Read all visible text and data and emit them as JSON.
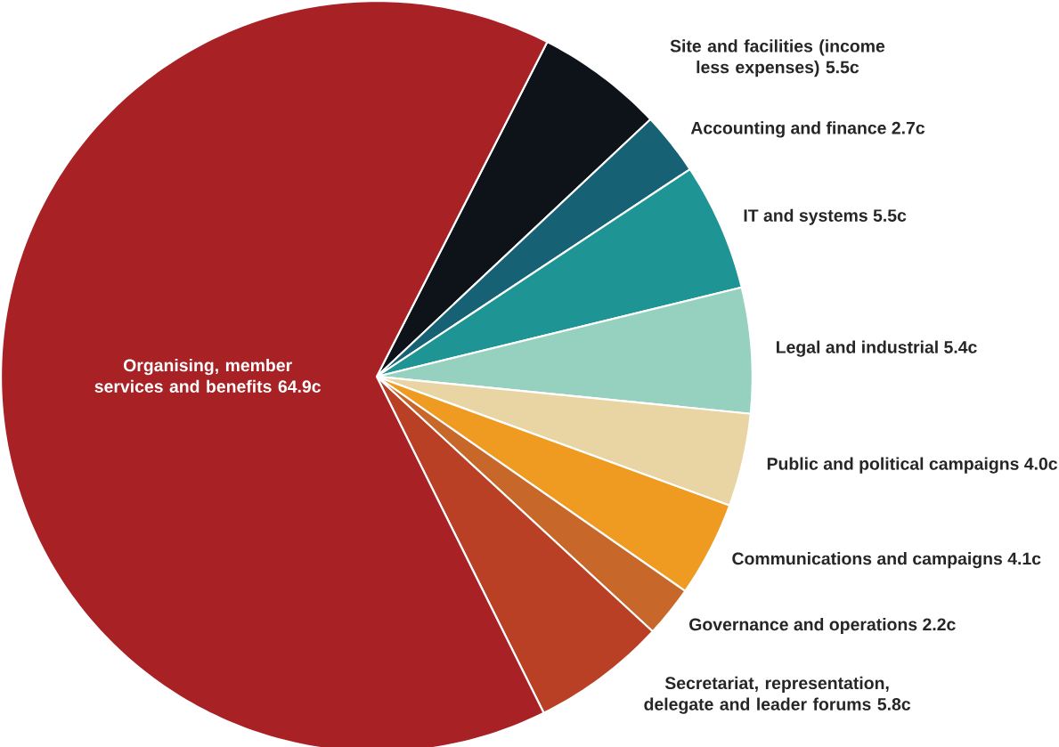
{
  "chart_data": {
    "type": "pie",
    "categories": [
      "Site and facilities (income less expenses)",
      "Accounting and finance",
      "IT and systems",
      "Legal and industrial",
      "Public and political campaigns",
      "Communications and campaigns",
      "Governance and operations",
      "Secretariat, representation, delegate and leader forums",
      "Organising, member services and benefits"
    ],
    "values": [
      5.5,
      2.7,
      5.5,
      5.4,
      4.0,
      4.1,
      2.2,
      5.8,
      64.9
    ],
    "value_labels": [
      "5.5c",
      "2.7c",
      "5.5c",
      "5.4c",
      "4.0c",
      "4.1c",
      "2.2c",
      "5.8c",
      "64.9c"
    ],
    "colors": [
      "#0e131a",
      "#166173",
      "#1e9594",
      "#96d1bf",
      "#e8d5a3",
      "#ef9b22",
      "#c8672a",
      "#b94024",
      "#a82225"
    ]
  }
}
